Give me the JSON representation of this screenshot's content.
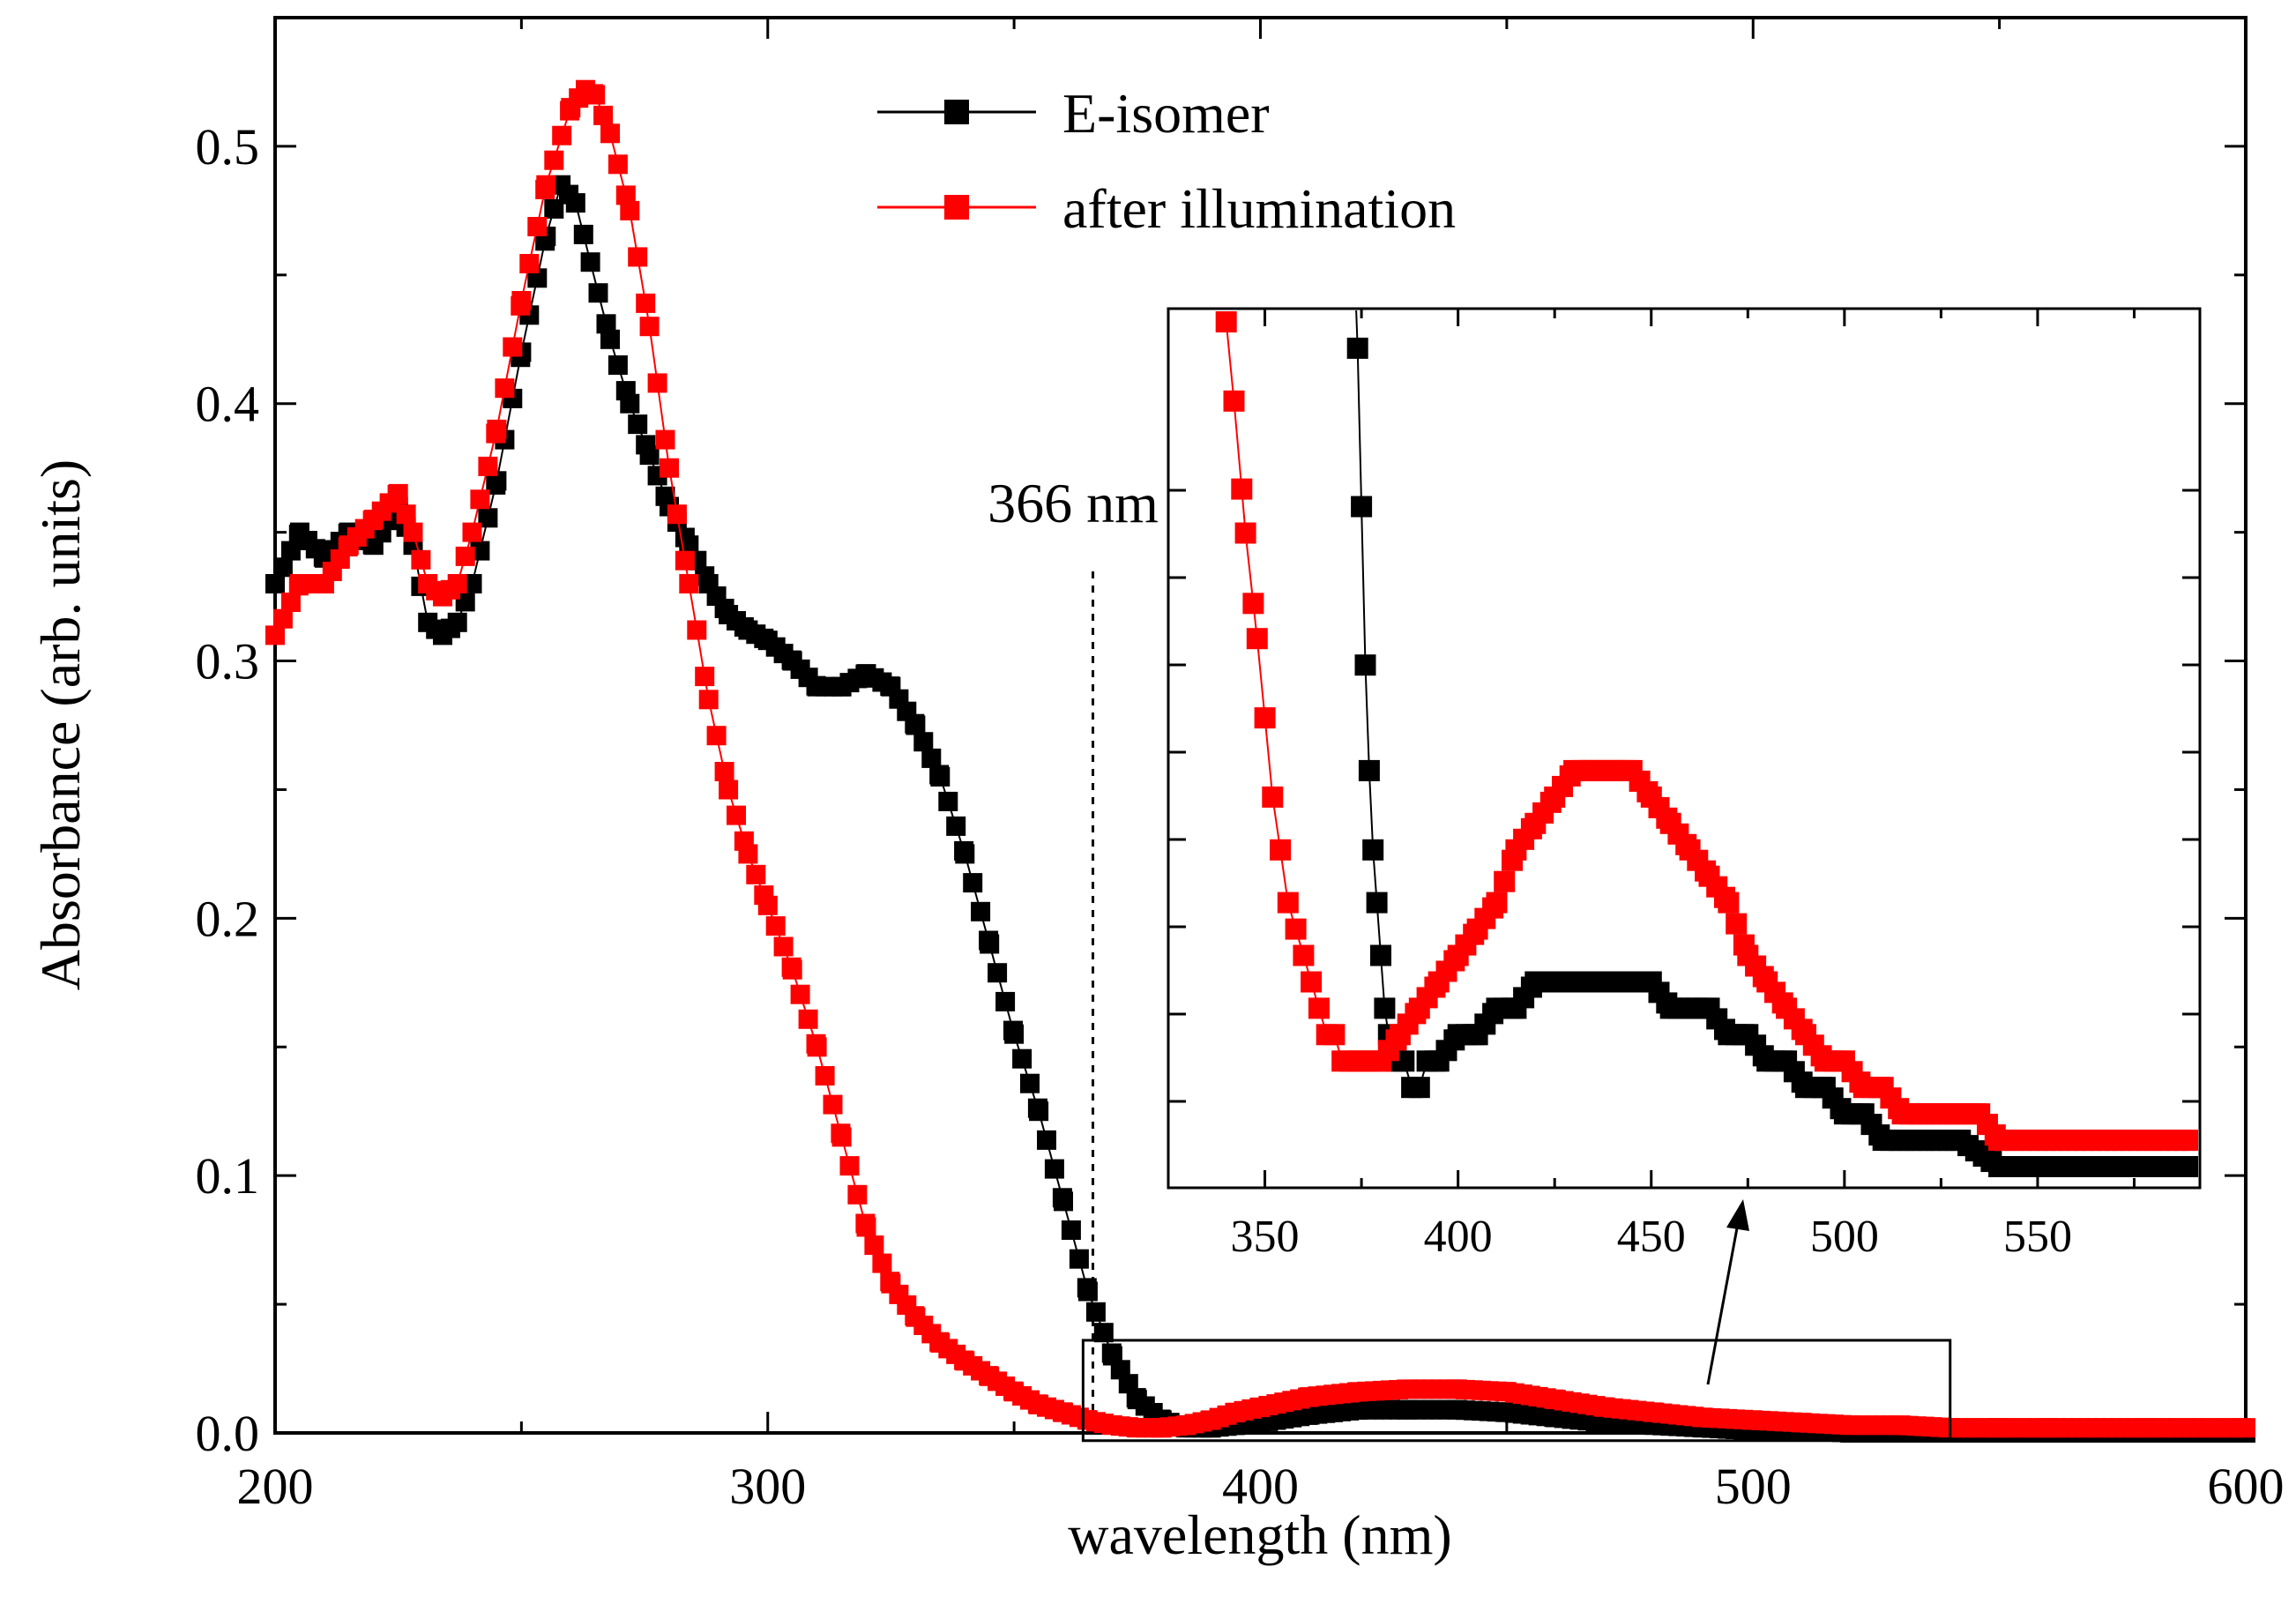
{
  "chart_data": [
    {
      "type": "scatter",
      "xlabel": "wavelength (nm)",
      "ylabel": "Absorbance (arb. units)",
      "xlim": [
        200,
        600
      ],
      "ylim": [
        0.0,
        0.55
      ],
      "xticks": [
        "200",
        "300",
        "400",
        "500",
        "600"
      ],
      "yticks": [
        "0.0",
        "0.1",
        "0.2",
        "0.3",
        "0.4",
        "0.5"
      ],
      "grid": false,
      "legend_position": "top-center",
      "markers": "square",
      "annotations": [
        {
          "text": "366 nm",
          "x": 366
        }
      ],
      "zoom_box": {
        "x": [
          364,
          540
        ],
        "y": [
          -0.003,
          0.036
        ]
      },
      "series": [
        {
          "name": "E-isomer",
          "color": "#000000",
          "x": [
            200,
            205,
            210,
            215,
            220,
            225,
            228,
            231,
            234,
            237,
            240,
            245,
            250,
            255,
            258,
            261,
            264,
            268,
            272,
            276,
            280,
            284,
            288,
            292,
            296,
            300,
            305,
            310,
            315,
            320,
            325,
            330,
            335,
            340,
            345,
            350,
            355,
            360,
            365,
            370,
            375,
            380,
            385,
            390,
            395,
            400,
            410,
            420,
            430,
            440,
            450,
            460,
            470,
            480,
            490,
            500,
            510,
            520,
            530,
            540,
            550,
            560,
            580,
            600
          ],
          "y": [
            0.33,
            0.35,
            0.34,
            0.35,
            0.345,
            0.36,
            0.345,
            0.315,
            0.31,
            0.315,
            0.33,
            0.37,
            0.42,
            0.465,
            0.485,
            0.478,
            0.455,
            0.425,
            0.4,
            0.38,
            0.36,
            0.345,
            0.33,
            0.318,
            0.312,
            0.308,
            0.3,
            0.29,
            0.29,
            0.295,
            0.29,
            0.275,
            0.255,
            0.225,
            0.19,
            0.155,
            0.125,
            0.09,
            0.055,
            0.03,
            0.013,
            0.005,
            0.002,
            0.002,
            0.003,
            0.004,
            0.007,
            0.009,
            0.009,
            0.009,
            0.008,
            0.006,
            0.004,
            0.003,
            0.002,
            0.001,
            0.001,
            0.0,
            0.0,
            0.0,
            0.0,
            0.0,
            0.0,
            0.0
          ]
        },
        {
          "name": "after illumination",
          "color": "#ff0000",
          "x": [
            200,
            205,
            210,
            215,
            220,
            225,
            228,
            231,
            234,
            237,
            240,
            245,
            250,
            255,
            260,
            263,
            265,
            268,
            272,
            276,
            280,
            284,
            288,
            292,
            296,
            300,
            305,
            310,
            315,
            320,
            325,
            330,
            335,
            340,
            345,
            350,
            355,
            360,
            365,
            370,
            375,
            380,
            385,
            390,
            395,
            400,
            410,
            420,
            430,
            440,
            450,
            460,
            470,
            480,
            490,
            500,
            510,
            520,
            530,
            540,
            550,
            560,
            580,
            600
          ],
          "y": [
            0.31,
            0.33,
            0.33,
            0.345,
            0.355,
            0.365,
            0.35,
            0.33,
            0.325,
            0.33,
            0.35,
            0.39,
            0.44,
            0.485,
            0.515,
            0.522,
            0.52,
            0.505,
            0.475,
            0.43,
            0.375,
            0.33,
            0.285,
            0.25,
            0.225,
            0.205,
            0.18,
            0.15,
            0.115,
            0.08,
            0.058,
            0.045,
            0.035,
            0.028,
            0.022,
            0.016,
            0.011,
            0.008,
            0.005,
            0.003,
            0.002,
            0.002,
            0.003,
            0.005,
            0.008,
            0.01,
            0.014,
            0.016,
            0.017,
            0.017,
            0.016,
            0.013,
            0.01,
            0.008,
            0.006,
            0.005,
            0.004,
            0.003,
            0.003,
            0.002,
            0.002,
            0.002,
            0.002,
            0.002
          ]
        }
      ]
    },
    {
      "type": "scatter",
      "xlim": [
        325,
        592
      ],
      "xticks": [
        "350",
        "400",
        "450",
        "500",
        "550"
      ],
      "yticks": [
        "",
        "",
        "",
        "",
        "",
        "",
        "",
        ""
      ],
      "grid": false,
      "markers": "square",
      "series": [
        {
          "name": "E-isomer",
          "color": "#000000",
          "x": [
            370,
            372,
            374,
            375,
            376,
            377,
            378,
            379,
            380,
            381,
            382,
            384,
            386,
            388,
            390,
            392,
            395,
            400,
            405,
            410,
            415,
            420,
            425,
            430,
            435,
            440,
            445,
            450,
            455,
            460,
            465,
            470,
            475,
            480,
            485,
            490,
            495,
            500,
            505,
            510,
            515,
            520,
            525,
            530,
            540,
            550,
            560,
            570,
            580,
            590
          ],
          "y": [
            0.052,
            0.04,
            0.032,
            0.026,
            0.02,
            0.016,
            0.013,
            0.011,
            0.009,
            0.007,
            0.006,
            0.005,
            0.005,
            0.004,
            0.004,
            0.005,
            0.005,
            0.006,
            0.006,
            0.007,
            0.007,
            0.008,
            0.008,
            0.008,
            0.008,
            0.008,
            0.008,
            0.008,
            0.007,
            0.007,
            0.007,
            0.006,
            0.006,
            0.005,
            0.005,
            0.004,
            0.004,
            0.003,
            0.003,
            0.002,
            0.002,
            0.002,
            0.002,
            0.002,
            0.001,
            0.001,
            0.001,
            0.001,
            0.001,
            0.001
          ]
        },
        {
          "name": "after illumination",
          "color": "#ff0000",
          "x": [
            340,
            342,
            345,
            348,
            350,
            352,
            354,
            356,
            358,
            360,
            362,
            364,
            366,
            368,
            370,
            372,
            375,
            380,
            385,
            390,
            395,
            400,
            405,
            410,
            415,
            420,
            425,
            430,
            435,
            440,
            445,
            450,
            455,
            460,
            465,
            470,
            475,
            480,
            485,
            490,
            495,
            500,
            505,
            510,
            515,
            520,
            525,
            530,
            535,
            540,
            550,
            560,
            570,
            580,
            590
          ],
          "y": [
            0.033,
            0.03,
            0.025,
            0.021,
            0.018,
            0.015,
            0.013,
            0.011,
            0.01,
            0.009,
            0.008,
            0.007,
            0.006,
            0.006,
            0.005,
            0.005,
            0.005,
            0.005,
            0.006,
            0.007,
            0.008,
            0.009,
            0.01,
            0.011,
            0.013,
            0.014,
            0.015,
            0.016,
            0.016,
            0.016,
            0.016,
            0.015,
            0.014,
            0.013,
            0.012,
            0.011,
            0.009,
            0.008,
            0.007,
            0.006,
            0.005,
            0.005,
            0.004,
            0.004,
            0.003,
            0.003,
            0.003,
            0.003,
            0.003,
            0.002,
            0.002,
            0.002,
            0.002,
            0.002,
            0.002
          ]
        }
      ]
    }
  ]
}
